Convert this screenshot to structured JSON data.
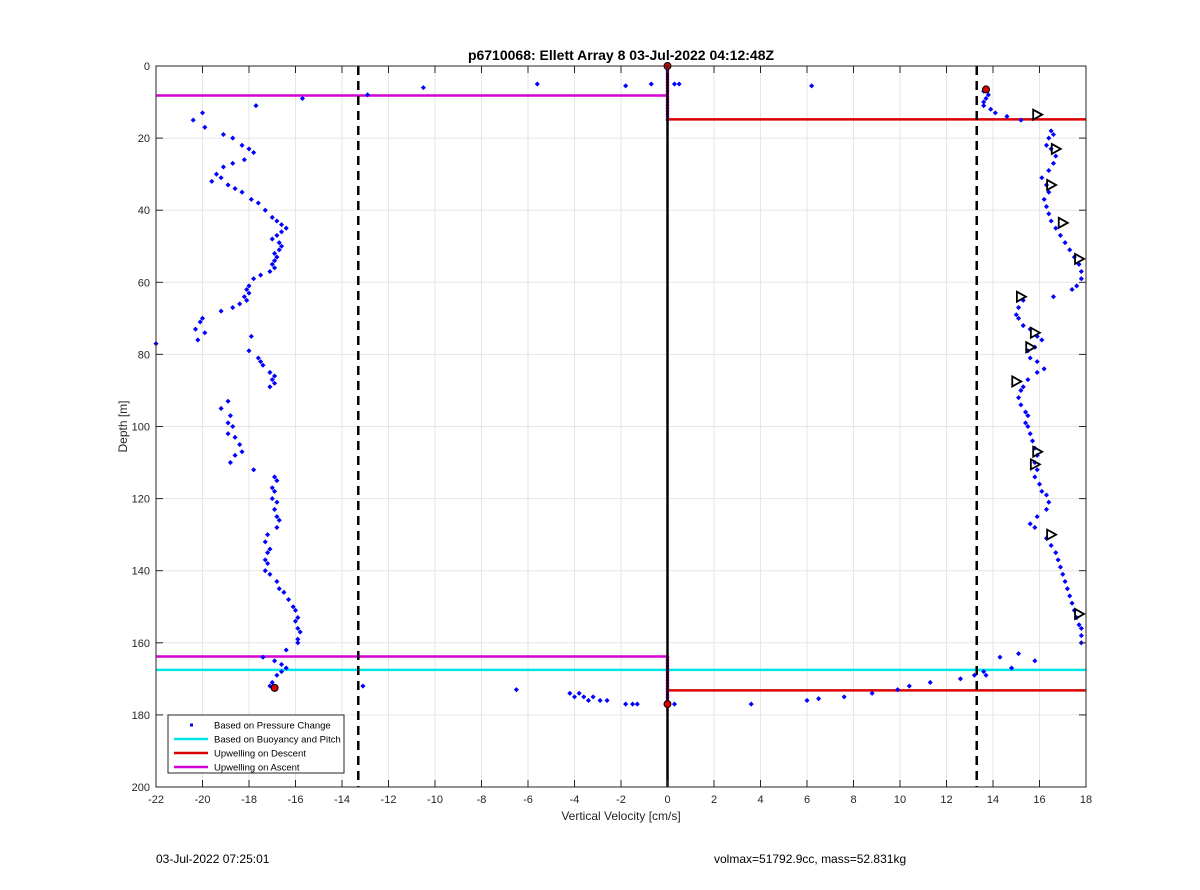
{
  "chart_data": {
    "type": "scatter",
    "title": "p6710068: Ellett Array 8 03-Jul-2022 04:12:48Z",
    "xlabel": "Vertical Velocity [cm/s]",
    "ylabel": "Depth [m]",
    "xlim": [
      -22,
      18
    ],
    "ylim": [
      0,
      200
    ],
    "y_reversed": true,
    "grid": true,
    "x_ticks": [
      -22,
      -20,
      -18,
      -16,
      -14,
      -12,
      -10,
      -8,
      -6,
      -4,
      -2,
      0,
      2,
      4,
      6,
      8,
      10,
      12,
      14,
      16,
      18
    ],
    "y_ticks": [
      0,
      20,
      40,
      60,
      80,
      100,
      120,
      140,
      160,
      180,
      200
    ],
    "legend_position": "bottom-left",
    "legend": [
      {
        "label": "Based on Pressure Change",
        "color": "#0000ff",
        "style": "dot"
      },
      {
        "label": "Based on Buoyancy and Pitch",
        "color": "#00e5e5",
        "style": "line"
      },
      {
        "label": "Upwelling on Descent",
        "color": "#d90000",
        "style": "line"
      },
      {
        "label": "Upwelling on Ascent",
        "color": "#d400d4",
        "style": "line"
      }
    ],
    "threshold_lines_x": [
      -13.3,
      13.3
    ],
    "zero_line_x": 0,
    "series": [
      {
        "name": "Based on Pressure Change",
        "color": "#0000ff",
        "points": [
          [
            -22.0,
            77
          ],
          [
            -20.4,
            15
          ],
          [
            -20.0,
            13
          ],
          [
            -19.9,
            17
          ],
          [
            -19.1,
            19
          ],
          [
            -18.7,
            20
          ],
          [
            -18.3,
            22
          ],
          [
            -18.0,
            23
          ],
          [
            -17.8,
            24
          ],
          [
            -18.2,
            26
          ],
          [
            -18.7,
            27
          ],
          [
            -19.1,
            28
          ],
          [
            -19.4,
            30
          ],
          [
            -19.6,
            32
          ],
          [
            -19.2,
            31
          ],
          [
            -18.9,
            33
          ],
          [
            -18.6,
            34
          ],
          [
            -18.3,
            35
          ],
          [
            -17.9,
            37
          ],
          [
            -17.6,
            38
          ],
          [
            -17.3,
            40
          ],
          [
            -17.0,
            42
          ],
          [
            -16.8,
            43
          ],
          [
            -16.6,
            44
          ],
          [
            -16.4,
            45
          ],
          [
            -16.6,
            46
          ],
          [
            -16.8,
            47
          ],
          [
            -17.0,
            48
          ],
          [
            -16.7,
            49
          ],
          [
            -16.6,
            50
          ],
          [
            -16.7,
            51
          ],
          [
            -16.9,
            52
          ],
          [
            -16.8,
            53
          ],
          [
            -16.9,
            54
          ],
          [
            -17.0,
            55
          ],
          [
            -16.9,
            56
          ],
          [
            -17.1,
            57
          ],
          [
            -17.5,
            58
          ],
          [
            -17.8,
            59
          ],
          [
            -18.0,
            61
          ],
          [
            -18.1,
            62
          ],
          [
            -18.0,
            63
          ],
          [
            -18.2,
            64
          ],
          [
            -18.1,
            65
          ],
          [
            -18.4,
            66
          ],
          [
            -18.7,
            67
          ],
          [
            -19.2,
            68
          ],
          [
            -20.0,
            70
          ],
          [
            -20.1,
            71
          ],
          [
            -20.3,
            73
          ],
          [
            -19.9,
            74
          ],
          [
            -20.2,
            76
          ],
          [
            -17.9,
            75
          ],
          [
            -18.0,
            79
          ],
          [
            -17.6,
            81
          ],
          [
            -17.5,
            82
          ],
          [
            -17.4,
            83
          ],
          [
            -17.1,
            85
          ],
          [
            -16.9,
            86
          ],
          [
            -17.0,
            87
          ],
          [
            -16.9,
            88
          ],
          [
            -17.1,
            89
          ],
          [
            -18.9,
            93
          ],
          [
            -19.2,
            95
          ],
          [
            -18.8,
            97
          ],
          [
            -18.9,
            99
          ],
          [
            -18.7,
            100
          ],
          [
            -18.9,
            102
          ],
          [
            -18.6,
            103
          ],
          [
            -18.4,
            105
          ],
          [
            -18.3,
            107
          ],
          [
            -18.6,
            108
          ],
          [
            -18.8,
            110
          ],
          [
            -17.8,
            112
          ],
          [
            -16.9,
            114
          ],
          [
            -16.8,
            115
          ],
          [
            -17.0,
            117
          ],
          [
            -16.9,
            118
          ],
          [
            -17.0,
            120
          ],
          [
            -16.8,
            121
          ],
          [
            -16.9,
            123
          ],
          [
            -16.8,
            125
          ],
          [
            -16.7,
            126
          ],
          [
            -16.8,
            128
          ],
          [
            -17.2,
            130
          ],
          [
            -17.3,
            132
          ],
          [
            -17.1,
            134
          ],
          [
            -17.2,
            135
          ],
          [
            -17.3,
            137
          ],
          [
            -17.2,
            138
          ],
          [
            -17.3,
            140
          ],
          [
            -17.1,
            141
          ],
          [
            -16.8,
            143
          ],
          [
            -16.7,
            145
          ],
          [
            -16.5,
            146
          ],
          [
            -16.3,
            148
          ],
          [
            -16.1,
            150
          ],
          [
            -16.0,
            151
          ],
          [
            -15.9,
            153
          ],
          [
            -16.0,
            154
          ],
          [
            -15.9,
            156
          ],
          [
            -15.8,
            157
          ],
          [
            -15.9,
            159
          ],
          [
            -15.9,
            160
          ],
          [
            -16.4,
            162
          ],
          [
            -17.4,
            164
          ],
          [
            -16.9,
            165
          ],
          [
            -16.6,
            166
          ],
          [
            -16.4,
            167
          ],
          [
            -16.6,
            168
          ],
          [
            -16.8,
            169
          ],
          [
            -17.0,
            171
          ],
          [
            -17.1,
            172
          ],
          [
            -15.7,
            9
          ],
          [
            -17.7,
            11
          ],
          [
            -12.9,
            8
          ],
          [
            -10.5,
            6
          ],
          [
            -5.6,
            5
          ],
          [
            -1.8,
            5.5
          ],
          [
            -0.7,
            5
          ],
          [
            0.3,
            5
          ],
          [
            0.5,
            5
          ],
          [
            6.2,
            5.5
          ],
          [
            -13.1,
            172
          ],
          [
            -6.5,
            173
          ],
          [
            -4.2,
            174
          ],
          [
            -4.0,
            175
          ],
          [
            -3.8,
            174
          ],
          [
            -3.6,
            175
          ],
          [
            -3.4,
            176
          ],
          [
            -3.2,
            175
          ],
          [
            -2.9,
            176
          ],
          [
            -2.6,
            176
          ],
          [
            -1.8,
            177
          ],
          [
            -1.5,
            177
          ],
          [
            -1.3,
            177
          ],
          [
            0.3,
            177
          ],
          [
            3.6,
            177
          ],
          [
            6.0,
            176
          ],
          [
            6.5,
            175.5
          ],
          [
            7.6,
            175
          ],
          [
            8.8,
            174
          ],
          [
            9.9,
            173
          ],
          [
            10.4,
            172
          ],
          [
            11.3,
            171
          ],
          [
            12.6,
            170
          ],
          [
            13.2,
            169
          ],
          [
            13.6,
            7
          ],
          [
            13.8,
            8
          ],
          [
            13.7,
            9
          ],
          [
            13.6,
            10
          ],
          [
            13.6,
            11
          ],
          [
            13.9,
            12
          ],
          [
            14.1,
            13
          ],
          [
            14.6,
            14
          ],
          [
            15.2,
            15
          ],
          [
            16.5,
            18
          ],
          [
            16.6,
            19
          ],
          [
            16.4,
            20
          ],
          [
            16.3,
            22
          ],
          [
            16.5,
            23
          ],
          [
            16.7,
            25
          ],
          [
            16.6,
            27
          ],
          [
            16.4,
            29
          ],
          [
            16.1,
            31
          ],
          [
            16.3,
            33
          ],
          [
            16.4,
            35
          ],
          [
            16.2,
            37
          ],
          [
            16.3,
            39
          ],
          [
            16.4,
            41
          ],
          [
            16.5,
            43
          ],
          [
            16.7,
            45
          ],
          [
            16.9,
            47
          ],
          [
            17.1,
            49
          ],
          [
            17.3,
            51
          ],
          [
            17.5,
            53
          ],
          [
            17.7,
            55
          ],
          [
            17.8,
            57
          ],
          [
            17.8,
            59
          ],
          [
            17.6,
            61
          ],
          [
            17.4,
            62
          ],
          [
            16.6,
            64
          ],
          [
            15.3,
            65
          ],
          [
            15.1,
            67
          ],
          [
            15.0,
            69
          ],
          [
            15.1,
            70
          ],
          [
            15.3,
            72
          ],
          [
            15.6,
            73
          ],
          [
            15.9,
            75
          ],
          [
            16.1,
            76
          ],
          [
            15.8,
            78
          ],
          [
            15.5,
            79
          ],
          [
            15.6,
            81
          ],
          [
            15.9,
            82
          ],
          [
            16.2,
            84
          ],
          [
            15.9,
            85
          ],
          [
            15.5,
            87
          ],
          [
            15.3,
            89
          ],
          [
            15.2,
            90
          ],
          [
            15.1,
            92
          ],
          [
            15.2,
            94
          ],
          [
            15.4,
            96
          ],
          [
            15.5,
            97
          ],
          [
            15.4,
            99
          ],
          [
            15.5,
            100
          ],
          [
            15.6,
            102
          ],
          [
            15.7,
            104
          ],
          [
            15.8,
            106
          ],
          [
            15.9,
            108
          ],
          [
            15.8,
            110
          ],
          [
            15.9,
            112
          ],
          [
            15.8,
            114
          ],
          [
            16.0,
            116
          ],
          [
            16.1,
            118
          ],
          [
            16.3,
            119
          ],
          [
            16.4,
            121
          ],
          [
            16.3,
            123
          ],
          [
            15.9,
            125
          ],
          [
            15.6,
            127
          ],
          [
            15.8,
            128
          ],
          [
            16.3,
            131
          ],
          [
            16.5,
            133
          ],
          [
            16.7,
            135
          ],
          [
            16.8,
            137
          ],
          [
            16.9,
            139
          ],
          [
            17.0,
            141
          ],
          [
            17.1,
            143
          ],
          [
            17.2,
            145
          ],
          [
            17.3,
            147
          ],
          [
            17.4,
            149
          ],
          [
            17.5,
            151
          ],
          [
            17.6,
            153
          ],
          [
            17.7,
            155
          ],
          [
            17.8,
            156
          ],
          [
            17.8,
            158
          ],
          [
            17.8,
            160
          ],
          [
            14.3,
            164
          ],
          [
            15.1,
            163
          ],
          [
            15.8,
            165
          ],
          [
            14.8,
            167
          ],
          [
            13.6,
            168
          ],
          [
            13.7,
            169
          ]
        ]
      },
      {
        "name": "Based on Buoyancy and Pitch",
        "color": "#00e5e5",
        "lines": [
          {
            "depth": 167.5,
            "x_from": -22,
            "x_to": 18
          }
        ]
      },
      {
        "name": "Upwelling on Descent",
        "color": "#d90000",
        "lines": [
          {
            "depth": 14.8,
            "x_from": 0,
            "x_to": 18
          },
          {
            "depth": 173.2,
            "x_from": 0,
            "x_to": 18
          }
        ]
      },
      {
        "name": "Upwelling on Ascent",
        "color": "#d400d4",
        "lines": [
          {
            "depth": 8.2,
            "x_from": -22,
            "x_to": 0
          },
          {
            "depth": 163.8,
            "x_from": -22,
            "x_to": 0
          }
        ]
      }
    ],
    "triangle_markers": [
      [
        15.9,
        13.5
      ],
      [
        16.7,
        23
      ],
      [
        16.5,
        33
      ],
      [
        17.0,
        43.5
      ],
      [
        17.7,
        53.5
      ],
      [
        15.2,
        64
      ],
      [
        15.8,
        74
      ],
      [
        15.6,
        78
      ],
      [
        15.0,
        87.5
      ],
      [
        15.9,
        107
      ],
      [
        15.8,
        110.5
      ],
      [
        16.5,
        130
      ],
      [
        17.7,
        152
      ]
    ],
    "red_markers": [
      [
        0.0,
        0
      ],
      [
        13.7,
        6.5
      ],
      [
        -16.9,
        172.5
      ],
      [
        0.0,
        177
      ]
    ]
  },
  "footer": {
    "left": "03-Jul-2022 07:25:01",
    "right": "volmax=51792.9cc, mass=52.831kg"
  }
}
